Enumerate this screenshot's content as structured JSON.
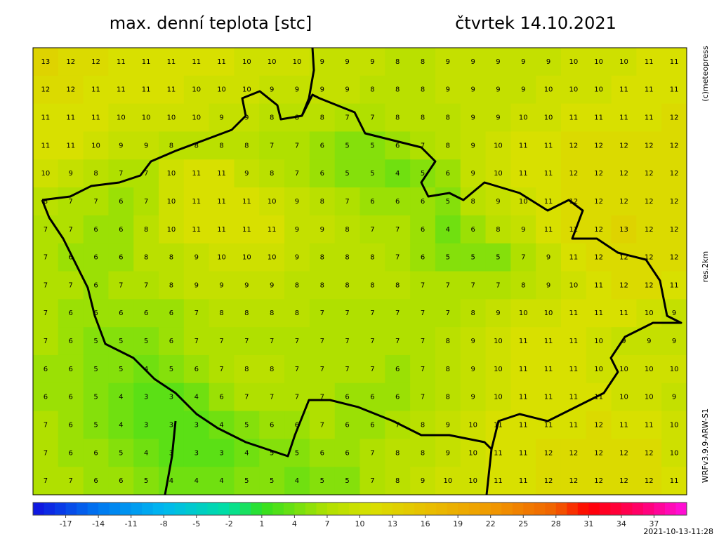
{
  "header": {
    "title": "max. denní teplota [stc]",
    "date": "čtvrtek 14.10.2021"
  },
  "side": {
    "copyright": "(c)meteopress",
    "resolution": "res.2km",
    "model": "WRFv3.9.9-ARW-S1"
  },
  "timestamp": "2021-10-13-11:28",
  "colorbar": {
    "range": [
      -20,
      40
    ],
    "ticks": [
      -17,
      -14,
      -11,
      -8,
      -5,
      -2,
      1,
      4,
      7,
      10,
      13,
      16,
      19,
      22,
      25,
      28,
      31,
      34,
      37
    ],
    "stops": [
      [
        -20,
        "#1010e0"
      ],
      [
        -14,
        "#0078f0"
      ],
      [
        -8,
        "#00b8f0"
      ],
      [
        -2,
        "#00e0a0"
      ],
      [
        1,
        "#30e020"
      ],
      [
        7,
        "#b0e000"
      ],
      [
        11,
        "#d8e000"
      ],
      [
        16,
        "#e8c000"
      ],
      [
        22,
        "#f09a00"
      ],
      [
        28,
        "#f06000"
      ],
      [
        31,
        "#ff0000"
      ],
      [
        36,
        "#ff0070"
      ],
      [
        40,
        "#ff10e0"
      ]
    ]
  },
  "grid": [
    [
      13,
      12,
      12,
      11,
      11,
      11,
      11,
      11,
      10,
      10,
      10,
      9,
      9,
      9,
      8,
      8,
      9,
      9,
      9,
      9,
      9,
      10,
      10,
      10,
      11,
      11
    ],
    [
      12,
      12,
      11,
      11,
      11,
      11,
      10,
      10,
      10,
      9,
      9,
      9,
      9,
      8,
      8,
      8,
      9,
      9,
      9,
      9,
      10,
      10,
      10,
      11,
      11,
      11
    ],
    [
      11,
      11,
      11,
      10,
      10,
      10,
      10,
      9,
      9,
      8,
      8,
      8,
      7,
      7,
      8,
      8,
      8,
      9,
      9,
      10,
      10,
      11,
      11,
      11,
      11,
      12
    ],
    [
      11,
      11,
      10,
      9,
      9,
      8,
      8,
      8,
      8,
      7,
      7,
      6,
      5,
      5,
      6,
      7,
      8,
      9,
      10,
      11,
      11,
      12,
      12,
      12,
      12,
      12
    ],
    [
      10,
      9,
      8,
      7,
      7,
      10,
      11,
      11,
      9,
      8,
      7,
      6,
      5,
      5,
      4,
      5,
      6,
      9,
      10,
      11,
      11,
      12,
      12,
      12,
      12,
      12
    ],
    [
      8,
      7,
      7,
      6,
      7,
      10,
      11,
      11,
      11,
      10,
      9,
      8,
      7,
      6,
      6,
      6,
      5,
      8,
      9,
      10,
      11,
      12,
      12,
      12,
      12,
      12
    ],
    [
      7,
      7,
      6,
      6,
      8,
      10,
      11,
      11,
      11,
      11,
      9,
      9,
      8,
      7,
      7,
      6,
      4,
      6,
      8,
      9,
      11,
      12,
      12,
      13,
      12,
      12
    ],
    [
      7,
      6,
      6,
      6,
      8,
      8,
      9,
      10,
      10,
      10,
      9,
      8,
      8,
      8,
      7,
      6,
      5,
      5,
      5,
      7,
      9,
      11,
      12,
      12,
      12,
      12
    ],
    [
      7,
      7,
      6,
      7,
      7,
      8,
      9,
      9,
      9,
      9,
      8,
      8,
      8,
      8,
      8,
      7,
      7,
      7,
      7,
      8,
      9,
      10,
      11,
      12,
      12,
      11
    ],
    [
      7,
      6,
      6,
      6,
      6,
      6,
      7,
      8,
      8,
      8,
      8,
      7,
      7,
      7,
      7,
      7,
      7,
      8,
      9,
      10,
      10,
      11,
      11,
      11,
      10,
      9
    ],
    [
      7,
      6,
      5,
      5,
      5,
      6,
      7,
      7,
      7,
      7,
      7,
      7,
      7,
      7,
      7,
      7,
      8,
      9,
      10,
      11,
      11,
      11,
      10,
      9,
      9,
      9
    ],
    [
      6,
      6,
      5,
      5,
      4,
      5,
      6,
      7,
      8,
      8,
      7,
      7,
      7,
      7,
      6,
      7,
      8,
      9,
      10,
      11,
      11,
      11,
      10,
      10,
      10,
      10
    ],
    [
      6,
      6,
      5,
      4,
      3,
      3,
      4,
      6,
      7,
      7,
      7,
      7,
      6,
      6,
      6,
      7,
      8,
      9,
      10,
      11,
      11,
      11,
      11,
      10,
      10,
      9
    ],
    [
      7,
      6,
      5,
      4,
      3,
      3,
      3,
      4,
      5,
      6,
      6,
      7,
      6,
      6,
      7,
      8,
      9,
      10,
      11,
      11,
      11,
      11,
      12,
      11,
      11,
      10
    ],
    [
      7,
      6,
      6,
      5,
      4,
      3,
      3,
      3,
      4,
      5,
      5,
      6,
      6,
      7,
      8,
      8,
      9,
      10,
      11,
      11,
      12,
      12,
      12,
      12,
      12,
      10
    ],
    [
      7,
      7,
      6,
      6,
      5,
      4,
      4,
      4,
      5,
      5,
      4,
      5,
      5,
      7,
      8,
      9,
      10,
      10,
      11,
      11,
      12,
      12,
      12,
      12,
      12,
      11
    ]
  ]
}
